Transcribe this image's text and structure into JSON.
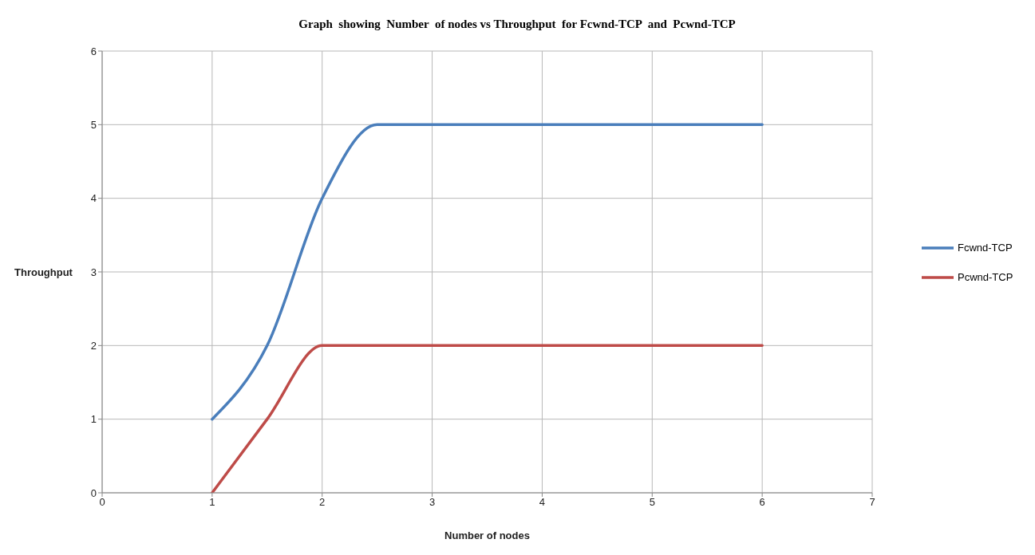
{
  "chart_data": {
    "type": "line",
    "title": "Graph  showing  Number  of nodes vs Throughput  for Fcwnd-TCP  and  Pcwnd-TCP",
    "xlabel": "Number of nodes",
    "ylabel": "Throughput",
    "x": [
      1,
      1.5,
      2,
      2.5,
      3,
      4,
      5,
      6
    ],
    "series": [
      {
        "name": "Fcwnd-TCP",
        "color": "#4a7ebb",
        "values": [
          1,
          2,
          4,
          5,
          5,
          5,
          5,
          5
        ]
      },
      {
        "name": "Pcwnd-TCP",
        "color": "#be4b48",
        "values": [
          0,
          1,
          2,
          2,
          2,
          2,
          2,
          2
        ]
      }
    ],
    "xlim": [
      0,
      7
    ],
    "xticks": [
      0,
      1,
      2,
      3,
      4,
      5,
      6,
      7
    ],
    "ylim": [
      0,
      6
    ],
    "yticks": [
      0,
      1,
      2,
      3,
      4,
      5,
      6
    ],
    "grid": true,
    "legend": "right",
    "marker": "none",
    "line_style": "solid"
  }
}
